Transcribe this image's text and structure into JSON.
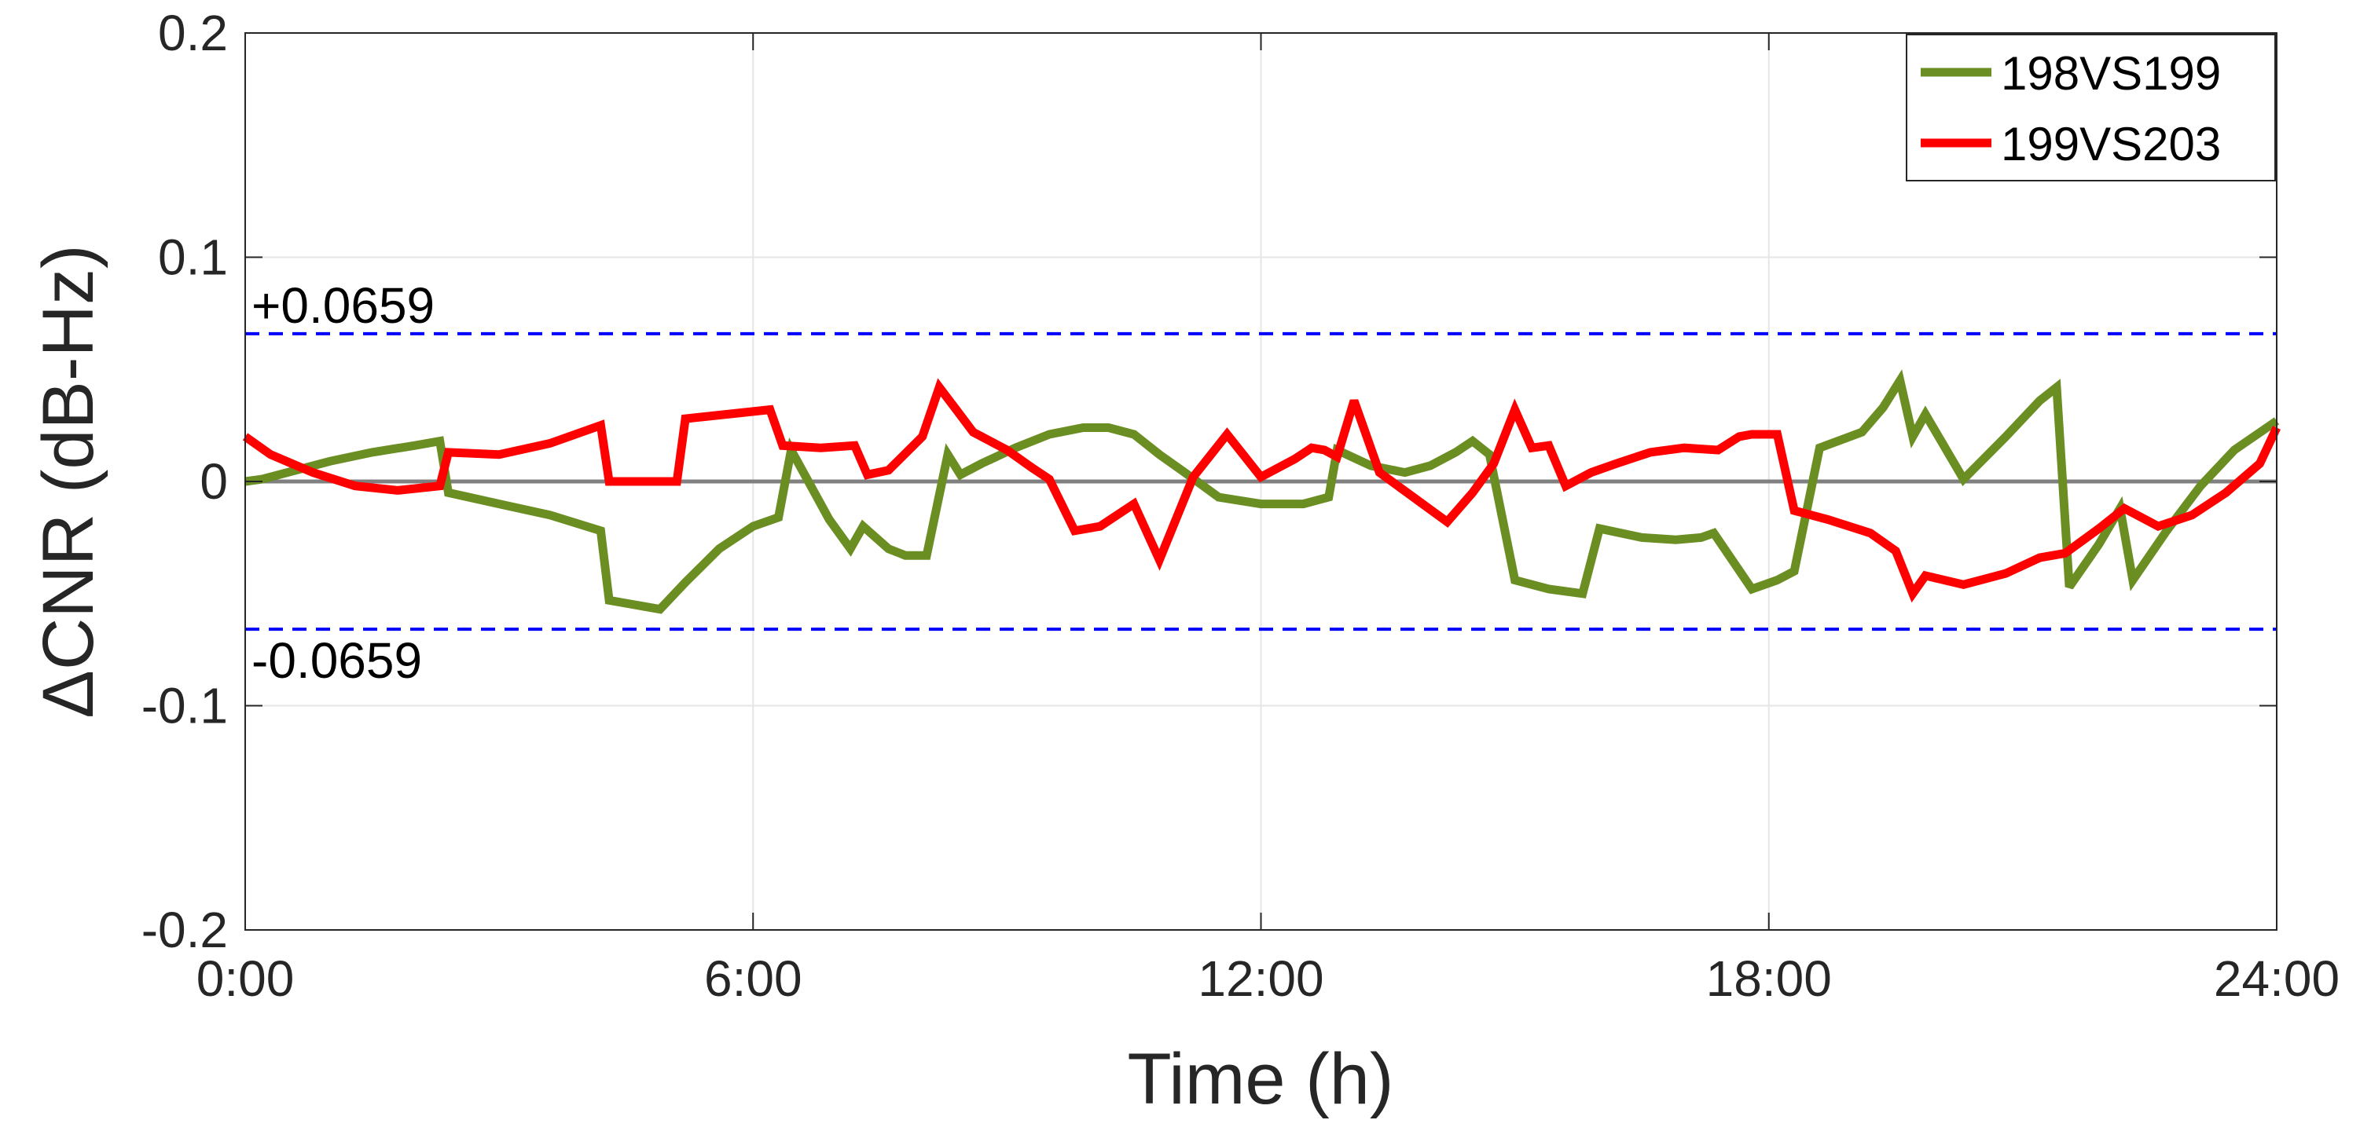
{
  "chart_data": {
    "type": "line",
    "xlabel": "Time (h)",
    "ylabel": "ΔCNR (dB-Hz)",
    "xlim": [
      0,
      24
    ],
    "ylim": [
      -0.2,
      0.2
    ],
    "x_ticks": [
      0,
      6,
      12,
      18,
      24
    ],
    "x_tick_labels": [
      "0:00",
      "6:00",
      "12:00",
      "18:00",
      "24:00"
    ],
    "y_ticks": [
      -0.2,
      -0.1,
      0,
      0.1,
      0.2
    ],
    "y_tick_labels": [
      "-0.2",
      "-0.1",
      "0",
      "0.1",
      "0.2"
    ],
    "grid": true,
    "legend_position": "top-right",
    "zero_line": {
      "value": 0,
      "color": "#808080"
    },
    "thresholds": [
      {
        "value": 0.0659,
        "label": "+0.0659",
        "color": "#0000ff",
        "style": "dashed"
      },
      {
        "value": -0.0659,
        "label": "-0.0659",
        "color": "#0000ff",
        "style": "dashed"
      }
    ],
    "series": [
      {
        "name": "198VS199",
        "color": "#6b8e23",
        "x": [
          0,
          0.2,
          0.6,
          1.0,
          1.5,
          2.0,
          2.3,
          2.4,
          3.0,
          3.6,
          4.2,
          4.3,
          4.9,
          5.2,
          5.6,
          6.0,
          6.3,
          6.45,
          6.9,
          7.15,
          7.3,
          7.6,
          7.8,
          8.05,
          8.3,
          8.45,
          8.7,
          9.1,
          9.5,
          9.9,
          10.2,
          10.5,
          10.8,
          11.1,
          11.5,
          12.0,
          12.5,
          12.8,
          12.9,
          13.3,
          13.7,
          14.0,
          14.3,
          14.5,
          14.7,
          15.0,
          15.4,
          15.8,
          16.0,
          16.5,
          16.9,
          17.2,
          17.35,
          17.8,
          18.1,
          18.3,
          18.6,
          19.1,
          19.35,
          19.55,
          19.7,
          19.85,
          20.3,
          20.8,
          21.2,
          21.4,
          21.55,
          21.9,
          22.15,
          22.3,
          22.7,
          23.1,
          23.5,
          24.0
        ],
        "values": [
          0.0,
          0.001,
          0.005,
          0.009,
          0.013,
          0.016,
          0.018,
          -0.005,
          -0.01,
          -0.015,
          -0.022,
          -0.053,
          -0.057,
          -0.045,
          -0.03,
          -0.02,
          -0.016,
          0.014,
          -0.017,
          -0.03,
          -0.02,
          -0.03,
          -0.033,
          -0.033,
          0.012,
          0.003,
          0.008,
          0.015,
          0.021,
          0.024,
          0.024,
          0.021,
          0.012,
          0.004,
          -0.007,
          -0.01,
          -0.01,
          -0.007,
          0.014,
          0.007,
          0.004,
          0.007,
          0.013,
          0.018,
          0.012,
          -0.044,
          -0.048,
          -0.05,
          -0.021,
          -0.025,
          -0.026,
          -0.025,
          -0.023,
          -0.048,
          -0.044,
          -0.04,
          0.015,
          0.022,
          0.033,
          0.045,
          0.02,
          0.03,
          0.001,
          0.02,
          0.036,
          0.042,
          -0.047,
          -0.028,
          -0.012,
          -0.044,
          -0.022,
          -0.002,
          0.014,
          0.027
        ]
      },
      {
        "name": "199VS203",
        "color": "#ff0000",
        "x": [
          0,
          0.3,
          0.8,
          1.3,
          1.8,
          2.3,
          2.4,
          3.0,
          3.6,
          4.2,
          4.3,
          4.7,
          5.1,
          5.2,
          5.7,
          6.2,
          6.35,
          6.8,
          7.2,
          7.35,
          7.6,
          8.0,
          8.2,
          8.4,
          8.6,
          9.0,
          9.3,
          9.5,
          9.8,
          10.1,
          10.5,
          10.8,
          11.2,
          11.6,
          12.0,
          12.4,
          12.6,
          12.75,
          12.9,
          13.1,
          13.4,
          13.8,
          14.2,
          14.5,
          14.75,
          15.0,
          15.2,
          15.4,
          15.6,
          15.9,
          16.2,
          16.6,
          17.0,
          17.4,
          17.65,
          17.8,
          18.0,
          18.1,
          18.3,
          18.7,
          19.2,
          19.5,
          19.7,
          19.85,
          20.3,
          20.8,
          21.2,
          21.5,
          21.9,
          22.2,
          22.6,
          23.0,
          23.4,
          23.8,
          24.0
        ],
        "values": [
          0.02,
          0.012,
          0.004,
          -0.002,
          -0.004,
          -0.002,
          0.013,
          0.012,
          0.017,
          0.025,
          0.0,
          0.0,
          0.0,
          0.028,
          0.03,
          0.032,
          0.016,
          0.015,
          0.016,
          0.003,
          0.005,
          0.02,
          0.042,
          0.032,
          0.022,
          0.014,
          0.006,
          0.001,
          -0.022,
          -0.02,
          -0.01,
          -0.035,
          0.002,
          0.021,
          0.002,
          0.01,
          0.015,
          0.014,
          0.011,
          0.036,
          0.004,
          -0.007,
          -0.018,
          -0.005,
          0.008,
          0.032,
          0.015,
          0.016,
          -0.002,
          0.004,
          0.008,
          0.013,
          0.015,
          0.014,
          0.02,
          0.021,
          0.021,
          0.021,
          -0.013,
          -0.017,
          -0.023,
          -0.031,
          -0.05,
          -0.042,
          -0.046,
          -0.041,
          -0.034,
          -0.032,
          -0.021,
          -0.012,
          -0.02,
          -0.015,
          -0.005,
          0.008,
          0.024
        ]
      }
    ]
  }
}
